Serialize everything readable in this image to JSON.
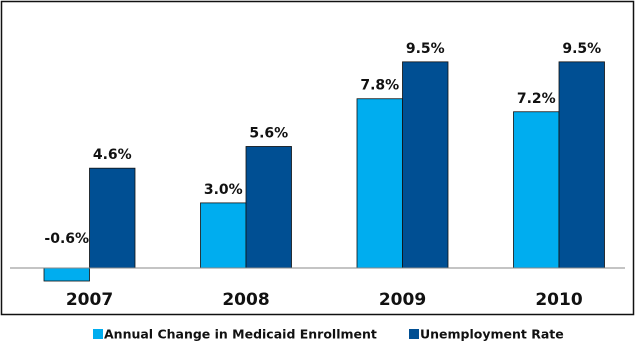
{
  "chart_data": {
    "type": "bar",
    "categories": [
      "2007",
      "2008",
      "2009",
      "2010"
    ],
    "series": [
      {
        "name": "Annual Change in Medicaid Enrollment",
        "values": [
          -0.6,
          3.0,
          7.8,
          7.2
        ],
        "labels": [
          "-0.6%",
          "3.0%",
          "7.8%",
          "7.2%"
        ],
        "color": "#00adef"
      },
      {
        "name": "Unemployment Rate",
        "values": [
          4.6,
          5.6,
          9.5,
          9.5
        ],
        "labels": [
          "4.6%",
          "5.6%",
          "9.5%",
          "9.5%"
        ],
        "color": "#004f93"
      }
    ],
    "ylim": [
      -1.2,
      10.5
    ],
    "legend": "bottom",
    "grid": false
  },
  "colors": {
    "border": "#111111",
    "axis": "#888888"
  }
}
